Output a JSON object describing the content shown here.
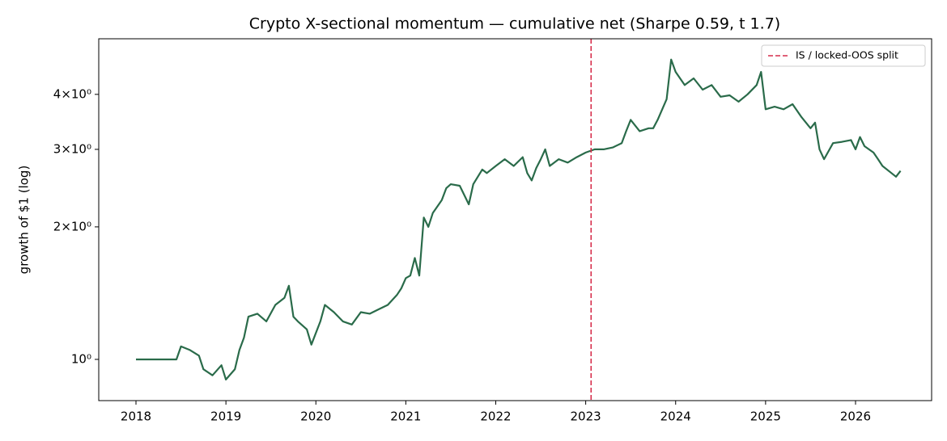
{
  "chart_data": {
    "type": "line",
    "title": "Crypto X-sectional momentum — cumulative net (Sharpe 0.59, t 1.7)",
    "y_label": "growth of $1 (log)",
    "log_y": true,
    "grid": false,
    "x": [
      2018.0,
      2018.45,
      2018.5,
      2018.6,
      2018.7,
      2018.75,
      2018.85,
      2018.95,
      2019.0,
      2019.1,
      2019.15,
      2019.2,
      2019.25,
      2019.35,
      2019.45,
      2019.55,
      2019.65,
      2019.7,
      2019.75,
      2019.8,
      2019.9,
      2019.95,
      2020.05,
      2020.1,
      2020.2,
      2020.3,
      2020.4,
      2020.5,
      2020.6,
      2020.7,
      2020.8,
      2020.9,
      2020.95,
      2021.0,
      2021.05,
      2021.1,
      2021.15,
      2021.2,
      2021.25,
      2021.3,
      2021.4,
      2021.45,
      2021.5,
      2021.6,
      2021.7,
      2021.75,
      2021.85,
      2021.9,
      2022.0,
      2022.1,
      2022.2,
      2022.3,
      2022.35,
      2022.4,
      2022.45,
      2022.5,
      2022.55,
      2022.6,
      2022.7,
      2022.8,
      2022.9,
      2023.0,
      2023.1,
      2023.2,
      2023.3,
      2023.4,
      2023.45,
      2023.5,
      2023.6,
      2023.7,
      2023.75,
      2023.8,
      2023.9,
      2023.95,
      2024.0,
      2024.1,
      2024.2,
      2024.3,
      2024.4,
      2024.5,
      2024.6,
      2024.7,
      2024.8,
      2024.9,
      2024.95,
      2025.0,
      2025.1,
      2025.2,
      2025.3,
      2025.4,
      2025.5,
      2025.55,
      2025.6,
      2025.65,
      2025.75,
      2025.85,
      2025.95,
      2026.0,
      2026.05,
      2026.1,
      2026.2,
      2026.25,
      2026.3,
      2026.4,
      2026.45,
      2026.5
    ],
    "series": [
      {
        "color": "#2a6b4a",
        "values": [
          1.0,
          1.0,
          1.07,
          1.05,
          1.02,
          0.95,
          0.92,
          0.97,
          0.9,
          0.95,
          1.05,
          1.12,
          1.25,
          1.27,
          1.22,
          1.33,
          1.38,
          1.47,
          1.25,
          1.22,
          1.17,
          1.08,
          1.22,
          1.33,
          1.28,
          1.22,
          1.2,
          1.28,
          1.27,
          1.3,
          1.33,
          1.4,
          1.45,
          1.53,
          1.55,
          1.7,
          1.55,
          2.1,
          2.0,
          2.15,
          2.3,
          2.45,
          2.5,
          2.48,
          2.25,
          2.5,
          2.7,
          2.65,
          2.75,
          2.85,
          2.75,
          2.88,
          2.65,
          2.55,
          2.72,
          2.85,
          3.0,
          2.75,
          2.85,
          2.8,
          2.88,
          2.95,
          3.0,
          3.0,
          3.03,
          3.1,
          3.3,
          3.5,
          3.3,
          3.35,
          3.35,
          3.5,
          3.9,
          4.8,
          4.5,
          4.2,
          4.35,
          4.1,
          4.2,
          3.95,
          3.98,
          3.85,
          4.0,
          4.2,
          4.5,
          3.7,
          3.75,
          3.7,
          3.8,
          3.55,
          3.35,
          3.45,
          3.0,
          2.85,
          3.1,
          3.12,
          3.15,
          3.0,
          3.2,
          3.05,
          2.95,
          2.85,
          2.75,
          2.65,
          2.6,
          2.68
        ]
      }
    ],
    "xlim": [
      2017.586,
      2026.846
    ],
    "xticks": [
      2018,
      2019,
      2020,
      2021,
      2022,
      2023,
      2024,
      2025,
      2026
    ],
    "ylim": [
      0.806,
      5.35
    ],
    "yticks": [
      {
        "value": 1,
        "label": "10⁰"
      },
      {
        "value": 2,
        "label": "2×10⁰"
      },
      {
        "value": 3,
        "label": "3×10⁰"
      },
      {
        "value": 4,
        "label": "4×10⁰"
      }
    ],
    "vline": {
      "x": 2023.06,
      "label": "IS / locked-OOS split",
      "color": "#d62d4b"
    },
    "legend": "upper right"
  }
}
